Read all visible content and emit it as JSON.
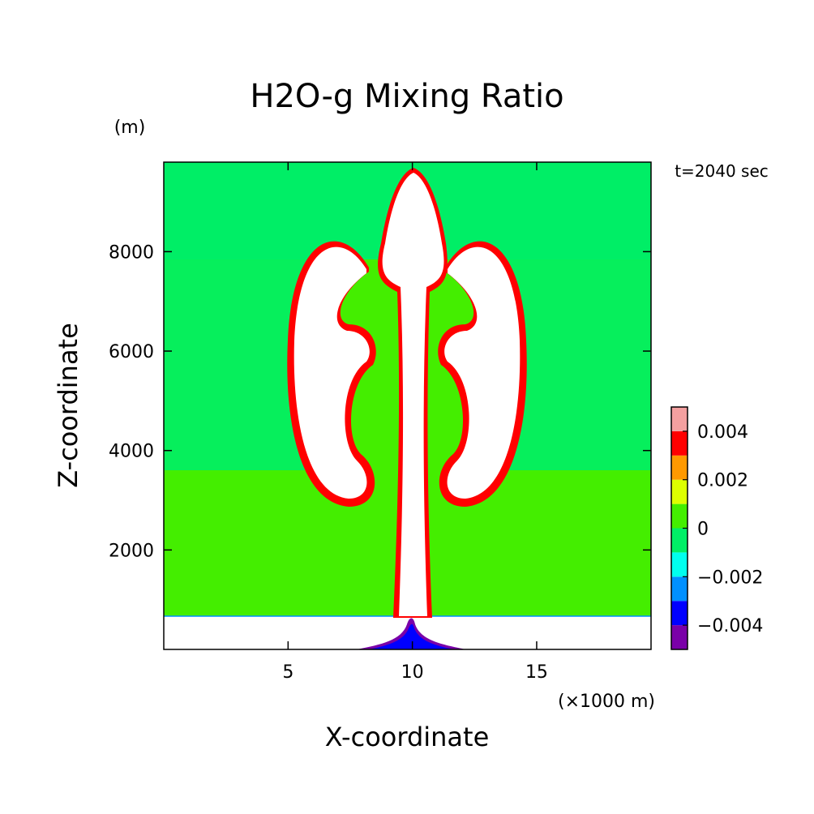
{
  "chart_data": {
    "type": "heatmap",
    "title": "H2O-g Mixing Ratio",
    "time_label": "t=2040 sec",
    "y_unit": "(m)",
    "x_unit": "(×1000 m)",
    "xlabel": "X-coordinate",
    "ylabel": "Z-coordinate",
    "xlim": [
      0,
      19.6
    ],
    "ylim": [
      0,
      9800
    ],
    "x_ticks": [
      5,
      10,
      15
    ],
    "y_ticks": [
      2000,
      4000,
      6000,
      8000
    ],
    "grid": false,
    "colorbar": {
      "levels": [
        {
          "lo": -0.005,
          "hi": -0.004,
          "color": "#7a00a8"
        },
        {
          "lo": -0.004,
          "hi": -0.003,
          "color": "#0000ff"
        },
        {
          "lo": -0.003,
          "hi": -0.002,
          "color": "#0090ff"
        },
        {
          "lo": -0.002,
          "hi": -0.001,
          "color": "#00ffee"
        },
        {
          "lo": -0.001,
          "hi": 0.0,
          "color": "#00ee66"
        },
        {
          "lo": 0.0,
          "hi": 0.001,
          "color": "#44ee00"
        },
        {
          "lo": 0.001,
          "hi": 0.002,
          "color": "#ddff00"
        },
        {
          "lo": 0.002,
          "hi": 0.003,
          "color": "#ff9900"
        },
        {
          "lo": 0.003,
          "hi": 0.004,
          "color": "#ff0000"
        },
        {
          "lo": 0.004,
          "hi": 0.005,
          "color": "#f4a0a0"
        }
      ],
      "tick_labels": [
        "−0.004",
        "−0.002",
        "0",
        "0.002",
        "0.004"
      ],
      "tick_values": [
        -0.004,
        -0.002,
        0.0,
        0.002,
        0.004
      ]
    }
  }
}
